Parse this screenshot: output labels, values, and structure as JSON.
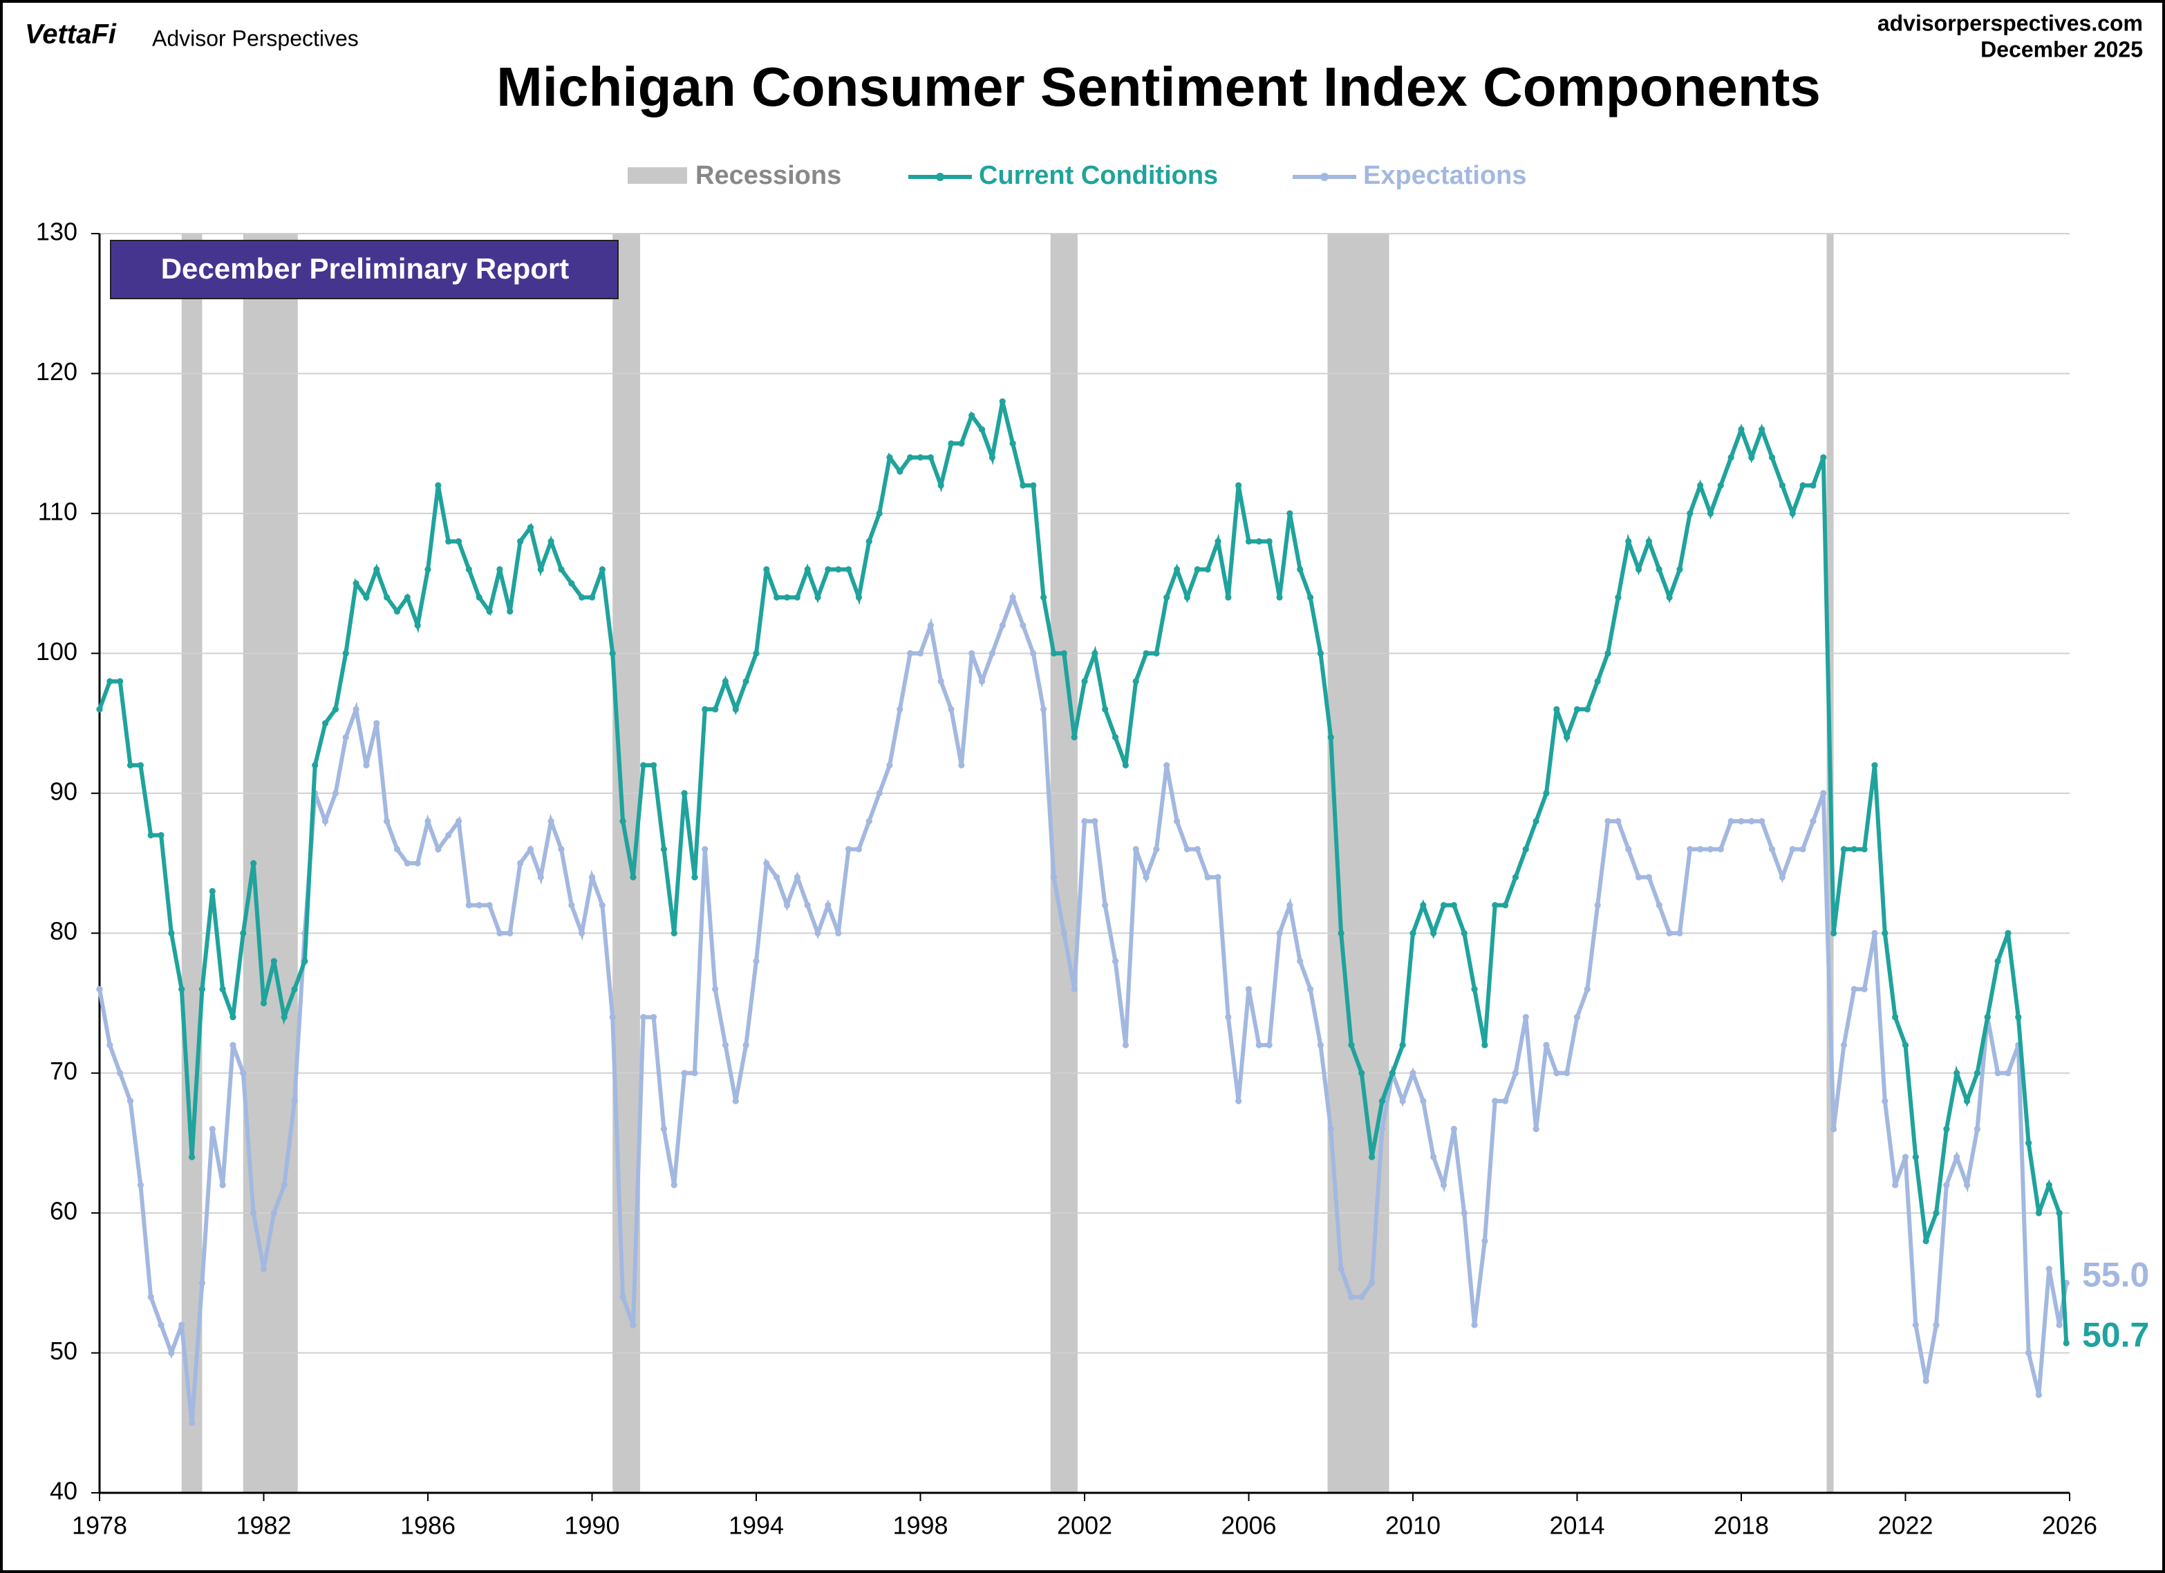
{
  "chart_data": {
    "type": "line",
    "title": "Michigan Consumer Sentiment Index Components",
    "brand": "VettaFi",
    "brand_subtitle": "Advisor Perspectives",
    "source": "advisorperspectives.com",
    "date": "December 2025",
    "annotation": "December Preliminary Report",
    "recessions": {
      "name": "Recessions",
      "color": "#c8c8c8",
      "spans": [
        [
          1980.0,
          1980.5
        ],
        [
          1981.5,
          1982.83
        ],
        [
          1990.5,
          1991.17
        ],
        [
          2001.17,
          2001.83
        ],
        [
          2007.92,
          2009.42
        ],
        [
          2020.08,
          2020.25
        ]
      ]
    },
    "x": [
      1978,
      1978.25,
      1978.5,
      1978.75,
      1979,
      1979.25,
      1979.5,
      1979.75,
      1980,
      1980.25,
      1980.5,
      1980.75,
      1981,
      1981.25,
      1981.5,
      1981.75,
      1982,
      1982.25,
      1982.5,
      1982.75,
      1983,
      1983.25,
      1983.5,
      1983.75,
      1984,
      1984.25,
      1984.5,
      1984.75,
      1985,
      1985.25,
      1985.5,
      1985.75,
      1986,
      1986.25,
      1986.5,
      1986.75,
      1987,
      1987.25,
      1987.5,
      1987.75,
      1988,
      1988.25,
      1988.5,
      1988.75,
      1989,
      1989.25,
      1989.5,
      1989.75,
      1990,
      1990.25,
      1990.5,
      1990.75,
      1991,
      1991.25,
      1991.5,
      1991.75,
      1992,
      1992.25,
      1992.5,
      1992.75,
      1993,
      1993.25,
      1993.5,
      1993.75,
      1994,
      1994.25,
      1994.5,
      1994.75,
      1995,
      1995.25,
      1995.5,
      1995.75,
      1996,
      1996.25,
      1996.5,
      1996.75,
      1997,
      1997.25,
      1997.5,
      1997.75,
      1998,
      1998.25,
      1998.5,
      1998.75,
      1999,
      1999.25,
      1999.5,
      1999.75,
      2000,
      2000.25,
      2000.5,
      2000.75,
      2001,
      2001.25,
      2001.5,
      2001.75,
      2002,
      2002.25,
      2002.5,
      2002.75,
      2003,
      2003.25,
      2003.5,
      2003.75,
      2004,
      2004.25,
      2004.5,
      2004.75,
      2005,
      2005.25,
      2005.5,
      2005.75,
      2006,
      2006.25,
      2006.5,
      2006.75,
      2007,
      2007.25,
      2007.5,
      2007.75,
      2008,
      2008.25,
      2008.5,
      2008.75,
      2009,
      2009.25,
      2009.5,
      2009.75,
      2010,
      2010.25,
      2010.5,
      2010.75,
      2011,
      2011.25,
      2011.5,
      2011.75,
      2012,
      2012.25,
      2012.5,
      2012.75,
      2013,
      2013.25,
      2013.5,
      2013.75,
      2014,
      2014.25,
      2014.5,
      2014.75,
      2015,
      2015.25,
      2015.5,
      2015.75,
      2016,
      2016.25,
      2016.5,
      2016.75,
      2017,
      2017.25,
      2017.5,
      2017.75,
      2018,
      2018.25,
      2018.5,
      2018.75,
      2019,
      2019.25,
      2019.5,
      2019.75,
      2020,
      2020.25,
      2020.5,
      2020.75,
      2021,
      2021.25,
      2021.5,
      2021.75,
      2022,
      2022.25,
      2022.5,
      2022.75,
      2023,
      2023.25,
      2023.5,
      2023.75,
      2024,
      2024.25,
      2024.5,
      2024.75,
      2025,
      2025.25,
      2025.5,
      2025.75,
      2025.92
    ],
    "series": [
      {
        "name": "Current Conditions",
        "color": "#1fa39c",
        "end_label": "50.7",
        "values": [
          96,
          98,
          98,
          92,
          92,
          87,
          87,
          80,
          76,
          64,
          76,
          83,
          76,
          74,
          80,
          85,
          75,
          78,
          74,
          76,
          78,
          92,
          95,
          96,
          100,
          105,
          104,
          106,
          104,
          103,
          104,
          102,
          106,
          112,
          108,
          108,
          106,
          104,
          103,
          106,
          103,
          108,
          109,
          106,
          108,
          106,
          105,
          104,
          104,
          106,
          100,
          88,
          84,
          92,
          92,
          86,
          80,
          90,
          84,
          96,
          96,
          98,
          96,
          98,
          100,
          106,
          104,
          104,
          104,
          106,
          104,
          106,
          106,
          106,
          104,
          108,
          110,
          114,
          113,
          114,
          114,
          114,
          112,
          115,
          115,
          117,
          116,
          114,
          118,
          115,
          112,
          112,
          104,
          100,
          100,
          94,
          98,
          100,
          96,
          94,
          92,
          98,
          100,
          100,
          104,
          106,
          104,
          106,
          106,
          108,
          104,
          112,
          108,
          108,
          108,
          104,
          110,
          106,
          104,
          100,
          94,
          80,
          72,
          70,
          64,
          68,
          70,
          72,
          80,
          82,
          80,
          82,
          82,
          80,
          76,
          72,
          82,
          82,
          84,
          86,
          88,
          90,
          96,
          94,
          96,
          96,
          98,
          100,
          104,
          108,
          106,
          108,
          106,
          104,
          106,
          110,
          112,
          110,
          112,
          114,
          116,
          114,
          116,
          114,
          112,
          110,
          112,
          112,
          114,
          80,
          86,
          86,
          86,
          92,
          80,
          74,
          72,
          64,
          58,
          60,
          66,
          70,
          68,
          70,
          74,
          78,
          80,
          74,
          65,
          60,
          62,
          60,
          50.7
        ]
      },
      {
        "name": "Expectations",
        "color": "#a3b8e0",
        "end_label": "55.0",
        "values": [
          76,
          72,
          70,
          68,
          62,
          54,
          52,
          50,
          52,
          45,
          55,
          66,
          62,
          72,
          70,
          60,
          56,
          60,
          62,
          68,
          80,
          90,
          88,
          90,
          94,
          96,
          92,
          95,
          88,
          86,
          85,
          85,
          88,
          86,
          87,
          88,
          82,
          82,
          82,
          80,
          80,
          85,
          86,
          84,
          88,
          86,
          82,
          80,
          84,
          82,
          74,
          54,
          52,
          74,
          74,
          66,
          62,
          70,
          70,
          86,
          76,
          72,
          68,
          72,
          78,
          85,
          84,
          82,
          84,
          82,
          80,
          82,
          80,
          86,
          86,
          88,
          90,
          92,
          96,
          100,
          100,
          102,
          98,
          96,
          92,
          100,
          98,
          100,
          102,
          104,
          102,
          100,
          96,
          84,
          80,
          76,
          88,
          88,
          82,
          78,
          72,
          86,
          84,
          86,
          92,
          88,
          86,
          86,
          84,
          84,
          74,
          68,
          76,
          72,
          72,
          80,
          82,
          78,
          76,
          72,
          66,
          56,
          54,
          54,
          55,
          66,
          70,
          68,
          70,
          68,
          64,
          62,
          66,
          60,
          52,
          58,
          68,
          68,
          70,
          74,
          66,
          72,
          70,
          70,
          74,
          76,
          82,
          88,
          88,
          86,
          84,
          84,
          82,
          80,
          80,
          86,
          86,
          86,
          86,
          88,
          88,
          88,
          88,
          86,
          84,
          86,
          86,
          88,
          90,
          66,
          72,
          76,
          76,
          80,
          68,
          62,
          64,
          52,
          48,
          52,
          62,
          64,
          62,
          66,
          74,
          70,
          70,
          72,
          50,
          47,
          56,
          52,
          55.0
        ]
      }
    ],
    "xlim": [
      1978,
      2026
    ],
    "xticks": [
      1978,
      1982,
      1986,
      1990,
      1994,
      1998,
      2002,
      2006,
      2010,
      2014,
      2018,
      2022,
      2026
    ],
    "ylim": [
      40,
      130
    ],
    "yticks": [
      40,
      50,
      60,
      70,
      80,
      90,
      100,
      110,
      120,
      130
    ],
    "grid": true
  }
}
